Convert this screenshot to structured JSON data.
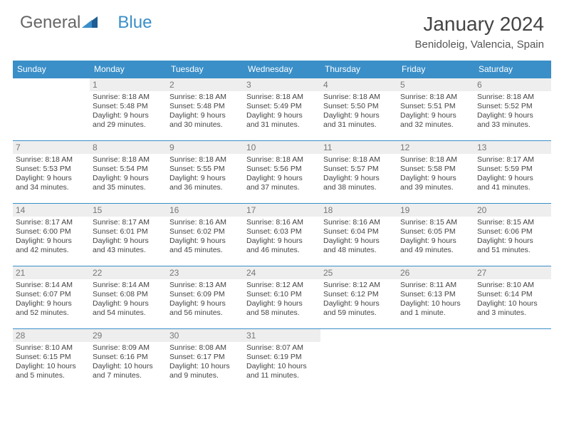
{
  "logo": {
    "text1": "General",
    "text2": "Blue"
  },
  "title": "January 2024",
  "location": "Benidoleig, Valencia, Spain",
  "colors": {
    "header_bg": "#3a8fc8",
    "header_text": "#ffffff",
    "daynum_bg": "#eeeeee",
    "daynum_text": "#777777",
    "body_text": "#444444",
    "rule": "#3a8fc8"
  },
  "weekdays": [
    "Sunday",
    "Monday",
    "Tuesday",
    "Wednesday",
    "Thursday",
    "Friday",
    "Saturday"
  ],
  "weeks": [
    [
      null,
      {
        "n": "1",
        "l1": "Sunrise: 8:18 AM",
        "l2": "Sunset: 5:48 PM",
        "l3": "Daylight: 9 hours",
        "l4": "and 29 minutes."
      },
      {
        "n": "2",
        "l1": "Sunrise: 8:18 AM",
        "l2": "Sunset: 5:48 PM",
        "l3": "Daylight: 9 hours",
        "l4": "and 30 minutes."
      },
      {
        "n": "3",
        "l1": "Sunrise: 8:18 AM",
        "l2": "Sunset: 5:49 PM",
        "l3": "Daylight: 9 hours",
        "l4": "and 31 minutes."
      },
      {
        "n": "4",
        "l1": "Sunrise: 8:18 AM",
        "l2": "Sunset: 5:50 PM",
        "l3": "Daylight: 9 hours",
        "l4": "and 31 minutes."
      },
      {
        "n": "5",
        "l1": "Sunrise: 8:18 AM",
        "l2": "Sunset: 5:51 PM",
        "l3": "Daylight: 9 hours",
        "l4": "and 32 minutes."
      },
      {
        "n": "6",
        "l1": "Sunrise: 8:18 AM",
        "l2": "Sunset: 5:52 PM",
        "l3": "Daylight: 9 hours",
        "l4": "and 33 minutes."
      }
    ],
    [
      {
        "n": "7",
        "l1": "Sunrise: 8:18 AM",
        "l2": "Sunset: 5:53 PM",
        "l3": "Daylight: 9 hours",
        "l4": "and 34 minutes."
      },
      {
        "n": "8",
        "l1": "Sunrise: 8:18 AM",
        "l2": "Sunset: 5:54 PM",
        "l3": "Daylight: 9 hours",
        "l4": "and 35 minutes."
      },
      {
        "n": "9",
        "l1": "Sunrise: 8:18 AM",
        "l2": "Sunset: 5:55 PM",
        "l3": "Daylight: 9 hours",
        "l4": "and 36 minutes."
      },
      {
        "n": "10",
        "l1": "Sunrise: 8:18 AM",
        "l2": "Sunset: 5:56 PM",
        "l3": "Daylight: 9 hours",
        "l4": "and 37 minutes."
      },
      {
        "n": "11",
        "l1": "Sunrise: 8:18 AM",
        "l2": "Sunset: 5:57 PM",
        "l3": "Daylight: 9 hours",
        "l4": "and 38 minutes."
      },
      {
        "n": "12",
        "l1": "Sunrise: 8:18 AM",
        "l2": "Sunset: 5:58 PM",
        "l3": "Daylight: 9 hours",
        "l4": "and 39 minutes."
      },
      {
        "n": "13",
        "l1": "Sunrise: 8:17 AM",
        "l2": "Sunset: 5:59 PM",
        "l3": "Daylight: 9 hours",
        "l4": "and 41 minutes."
      }
    ],
    [
      {
        "n": "14",
        "l1": "Sunrise: 8:17 AM",
        "l2": "Sunset: 6:00 PM",
        "l3": "Daylight: 9 hours",
        "l4": "and 42 minutes."
      },
      {
        "n": "15",
        "l1": "Sunrise: 8:17 AM",
        "l2": "Sunset: 6:01 PM",
        "l3": "Daylight: 9 hours",
        "l4": "and 43 minutes."
      },
      {
        "n": "16",
        "l1": "Sunrise: 8:16 AM",
        "l2": "Sunset: 6:02 PM",
        "l3": "Daylight: 9 hours",
        "l4": "and 45 minutes."
      },
      {
        "n": "17",
        "l1": "Sunrise: 8:16 AM",
        "l2": "Sunset: 6:03 PM",
        "l3": "Daylight: 9 hours",
        "l4": "and 46 minutes."
      },
      {
        "n": "18",
        "l1": "Sunrise: 8:16 AM",
        "l2": "Sunset: 6:04 PM",
        "l3": "Daylight: 9 hours",
        "l4": "and 48 minutes."
      },
      {
        "n": "19",
        "l1": "Sunrise: 8:15 AM",
        "l2": "Sunset: 6:05 PM",
        "l3": "Daylight: 9 hours",
        "l4": "and 49 minutes."
      },
      {
        "n": "20",
        "l1": "Sunrise: 8:15 AM",
        "l2": "Sunset: 6:06 PM",
        "l3": "Daylight: 9 hours",
        "l4": "and 51 minutes."
      }
    ],
    [
      {
        "n": "21",
        "l1": "Sunrise: 8:14 AM",
        "l2": "Sunset: 6:07 PM",
        "l3": "Daylight: 9 hours",
        "l4": "and 52 minutes."
      },
      {
        "n": "22",
        "l1": "Sunrise: 8:14 AM",
        "l2": "Sunset: 6:08 PM",
        "l3": "Daylight: 9 hours",
        "l4": "and 54 minutes."
      },
      {
        "n": "23",
        "l1": "Sunrise: 8:13 AM",
        "l2": "Sunset: 6:09 PM",
        "l3": "Daylight: 9 hours",
        "l4": "and 56 minutes."
      },
      {
        "n": "24",
        "l1": "Sunrise: 8:12 AM",
        "l2": "Sunset: 6:10 PM",
        "l3": "Daylight: 9 hours",
        "l4": "and 58 minutes."
      },
      {
        "n": "25",
        "l1": "Sunrise: 8:12 AM",
        "l2": "Sunset: 6:12 PM",
        "l3": "Daylight: 9 hours",
        "l4": "and 59 minutes."
      },
      {
        "n": "26",
        "l1": "Sunrise: 8:11 AM",
        "l2": "Sunset: 6:13 PM",
        "l3": "Daylight: 10 hours",
        "l4": "and 1 minute."
      },
      {
        "n": "27",
        "l1": "Sunrise: 8:10 AM",
        "l2": "Sunset: 6:14 PM",
        "l3": "Daylight: 10 hours",
        "l4": "and 3 minutes."
      }
    ],
    [
      {
        "n": "28",
        "l1": "Sunrise: 8:10 AM",
        "l2": "Sunset: 6:15 PM",
        "l3": "Daylight: 10 hours",
        "l4": "and 5 minutes."
      },
      {
        "n": "29",
        "l1": "Sunrise: 8:09 AM",
        "l2": "Sunset: 6:16 PM",
        "l3": "Daylight: 10 hours",
        "l4": "and 7 minutes."
      },
      {
        "n": "30",
        "l1": "Sunrise: 8:08 AM",
        "l2": "Sunset: 6:17 PM",
        "l3": "Daylight: 10 hours",
        "l4": "and 9 minutes."
      },
      {
        "n": "31",
        "l1": "Sunrise: 8:07 AM",
        "l2": "Sunset: 6:19 PM",
        "l3": "Daylight: 10 hours",
        "l4": "and 11 minutes."
      },
      null,
      null,
      null
    ]
  ]
}
